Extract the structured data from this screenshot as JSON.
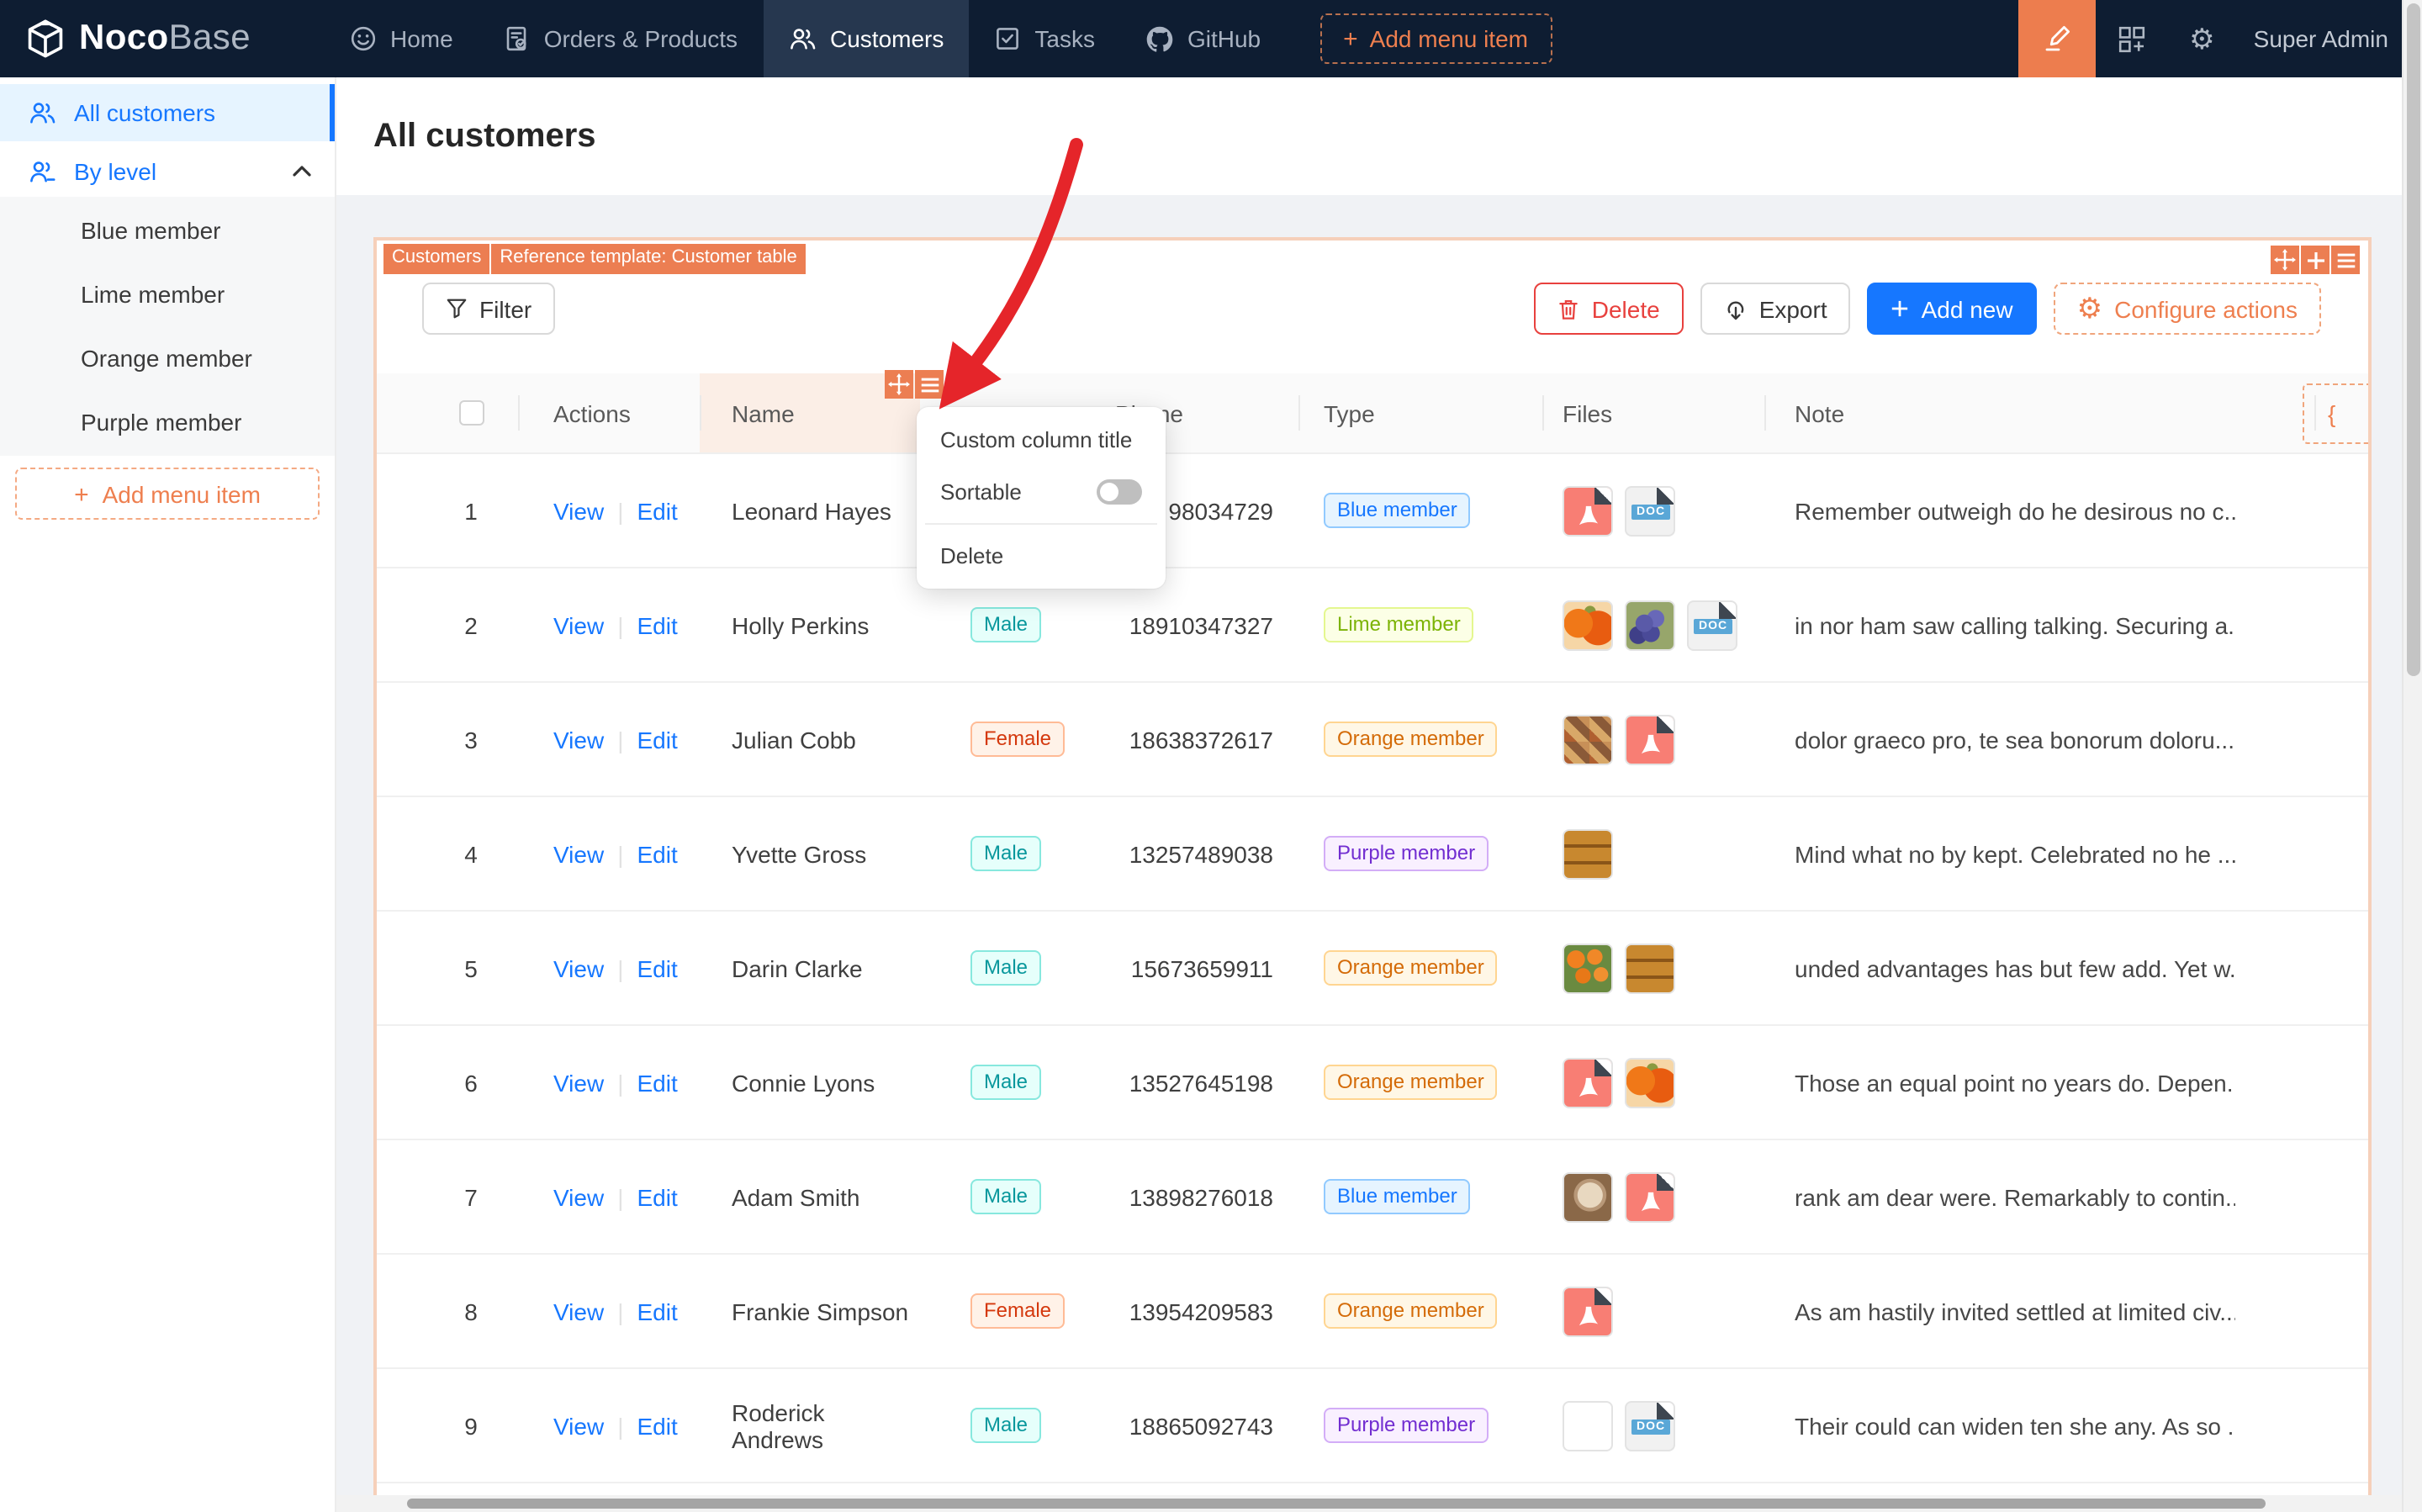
{
  "navbar": {
    "logo_bold": "Noco",
    "logo_light": "Base",
    "items": [
      {
        "label": "Home"
      },
      {
        "label": "Orders & Products"
      },
      {
        "label": "Customers",
        "active": true
      },
      {
        "label": "Tasks"
      },
      {
        "label": "GitHub"
      }
    ],
    "add_menu_item": "Add menu item",
    "user": "Super Admin"
  },
  "sidebar": {
    "all_customers": "All customers",
    "by_level": "By level",
    "levels": [
      "Blue member",
      "Lime member",
      "Orange member",
      "Purple member"
    ],
    "add_menu_item": "Add menu item"
  },
  "page": {
    "title": "All customers"
  },
  "card": {
    "tags": [
      "Customers",
      "Reference template: Customer table"
    ],
    "toolbar": {
      "filter": "Filter",
      "delete": "Delete",
      "export": "Export",
      "add_new": "Add new",
      "configure_actions": "Configure actions"
    },
    "column_config_glyph": "{"
  },
  "table": {
    "headers": {
      "actions": "Actions",
      "name": "Name",
      "gender": "",
      "phone": "Phone",
      "type": "Type",
      "files": "Files",
      "note": "Note"
    },
    "action_labels": [
      "View",
      "Edit"
    ],
    "doc_label": "DOC",
    "rows": [
      {
        "index": 1,
        "name": "Leonard Hayes",
        "gender": "",
        "phone": "98034729",
        "type": "Blue member",
        "files": [
          "pdf",
          "doc"
        ],
        "note": "Remember outweigh do he desirous no c..."
      },
      {
        "index": 2,
        "name": "Holly Perkins",
        "gender": "Male",
        "phone": "18910347327",
        "type": "Lime member",
        "files": [
          "img-pumpkins",
          "img-grapes",
          "doc"
        ],
        "note": "in nor ham saw calling talking. Securing a..."
      },
      {
        "index": 3,
        "name": "Julian Cobb",
        "gender": "Female",
        "phone": "18638372617",
        "type": "Orange member",
        "files": [
          "img-food",
          "pdf"
        ],
        "note": "dolor graeco pro, te sea bonorum doloru..."
      },
      {
        "index": 4,
        "name": "Yvette Gross",
        "gender": "Male",
        "phone": "13257489038",
        "type": "Purple member",
        "files": [
          "img-cookies"
        ],
        "note": "Mind what no by kept. Celebrated no he ..."
      },
      {
        "index": 5,
        "name": "Darin Clarke",
        "gender": "Male",
        "phone": "15673659911",
        "type": "Orange member",
        "files": [
          "img-oranges",
          "img-cookies"
        ],
        "note": "unded advantages has but few add. Yet w..."
      },
      {
        "index": 6,
        "name": "Connie Lyons",
        "gender": "Male",
        "phone": "13527645198",
        "type": "Orange member",
        "files": [
          "pdf",
          "img-pumpkins"
        ],
        "note": "Those an equal point no years do. Depen..."
      },
      {
        "index": 7,
        "name": "Adam Smith",
        "gender": "Male",
        "phone": "13898276018",
        "type": "Blue member",
        "files": [
          "img-coffee",
          "pdf"
        ],
        "note": "rank am dear were. Remarkably to contin..."
      },
      {
        "index": 8,
        "name": "Frankie Simpson",
        "gender": "Female",
        "phone": "13954209583",
        "type": "Orange member",
        "files": [
          "pdf"
        ],
        "note": "As am hastily invited settled at limited civ..."
      },
      {
        "index": 9,
        "name": "Roderick Andrews",
        "gender": "Male",
        "phone": "18865092743",
        "type": "Purple member",
        "files": [
          "img-cafe",
          "doc"
        ],
        "note": "Their could can widen ten she any. As so ..."
      }
    ]
  },
  "popup": {
    "items": [
      "Custom column title",
      "Sortable",
      "Delete"
    ],
    "sortable_enabled": false
  },
  "colors": {
    "navbar_bg": "#0e1d32",
    "accent_orange": "#ec7e52",
    "primary_blue": "#1677ff",
    "danger_red": "#e8413e",
    "arrow_red": "#e5252a",
    "card_border": "#f6d0ba",
    "name_header_highlight": "#fbeee6",
    "tag_male": {
      "bg": "#e6fffb",
      "border": "#87e8de",
      "text": "#08979c"
    },
    "tag_female": {
      "bg": "#fff2e8",
      "border": "#ffbb96",
      "text": "#d4380d"
    },
    "tag_blue_member": {
      "bg": "#e6f4ff",
      "border": "#91caff",
      "text": "#1677ff"
    },
    "tag_lime_member": {
      "bg": "#fcffe6",
      "border": "#e4f78f",
      "text": "#7cb305"
    },
    "tag_orange_member": {
      "bg": "#fff7e6",
      "border": "#ffd591",
      "text": "#d46b08"
    },
    "tag_purple_member": {
      "bg": "#f9f0ff",
      "border": "#d3adf7",
      "text": "#722ed1"
    }
  }
}
